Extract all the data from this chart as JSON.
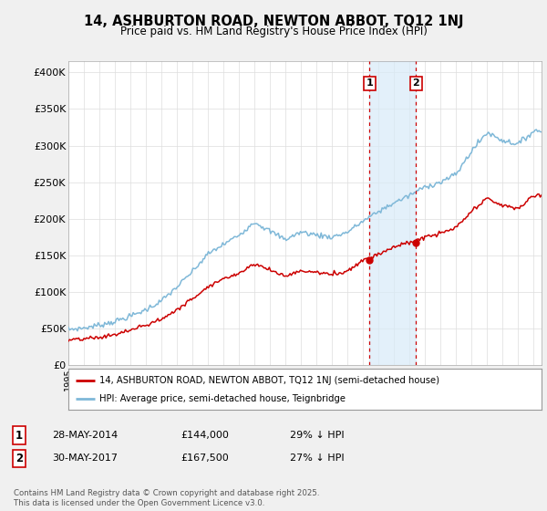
{
  "title": "14, ASHBURTON ROAD, NEWTON ABBOT, TQ12 1NJ",
  "subtitle": "Price paid vs. HM Land Registry's House Price Index (HPI)",
  "ylabel_ticks": [
    "£0",
    "£50K",
    "£100K",
    "£150K",
    "£200K",
    "£250K",
    "£300K",
    "£350K",
    "£400K"
  ],
  "ytick_values": [
    0,
    50000,
    100000,
    150000,
    200000,
    250000,
    300000,
    350000,
    400000
  ],
  "ylim": [
    0,
    415000
  ],
  "hpi_color": "#7fb8d8",
  "sale_color": "#cc0000",
  "marker1_x": 2014.41,
  "marker2_x": 2017.41,
  "sale1_y": 144000,
  "sale2_y": 167500,
  "sale1_date": "28-MAY-2014",
  "sale1_price": "£144,000",
  "sale1_below": "29% ↓ HPI",
  "sale2_date": "30-MAY-2017",
  "sale2_price": "£167,500",
  "sale2_below": "27% ↓ HPI",
  "legend_sale": "14, ASHBURTON ROAD, NEWTON ABBOT, TQ12 1NJ (semi-detached house)",
  "legend_hpi": "HPI: Average price, semi-detached house, Teignbridge",
  "footer": "Contains HM Land Registry data © Crown copyright and database right 2025.\nThis data is licensed under the Open Government Licence v3.0.",
  "xmin": 1995,
  "xmax": 2025.5,
  "bg_color": "#f0f0f0",
  "plot_bg": "#ffffff",
  "grid_color": "#dddddd",
  "shade_color": "#d8eaf8"
}
